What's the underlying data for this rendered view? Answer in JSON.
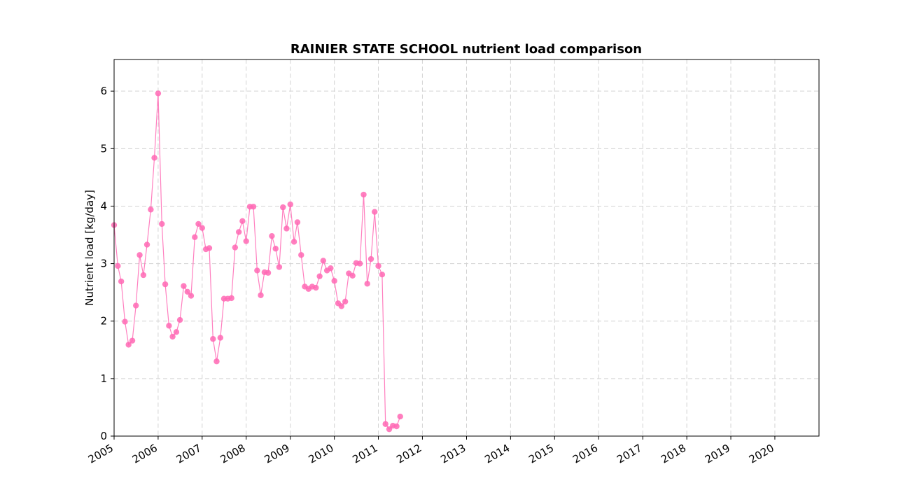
{
  "chart_data": {
    "type": "line",
    "title": "RAINIER STATE SCHOOL nutrient load comparison",
    "xlabel": "",
    "ylabel": "Nutrient load [kg/day]",
    "xlim": [
      "2005-01-01",
      "2021-01-01"
    ],
    "ylim": [
      0,
      6.55
    ],
    "x_ticks": [
      "2005",
      "2006",
      "2007",
      "2008",
      "2009",
      "2010",
      "2011",
      "2012",
      "2013",
      "2014",
      "2015",
      "2016",
      "2017",
      "2018",
      "2019",
      "2020"
    ],
    "y_ticks": [
      "0",
      "1",
      "2",
      "3",
      "4",
      "5",
      "6"
    ],
    "grid": true,
    "marker_color": "#ff69b4",
    "line_color": "#ff69b4",
    "series": [
      {
        "x": [
          "2005-01",
          "2005-02",
          "2005-03",
          "2005-04",
          "2005-05",
          "2005-06",
          "2005-07",
          "2005-08",
          "2005-09",
          "2005-10",
          "2005-11",
          "2005-12",
          "2006-01",
          "2006-02",
          "2006-03",
          "2006-04",
          "2006-05",
          "2006-06",
          "2006-07",
          "2006-08",
          "2006-09",
          "2006-10",
          "2006-11",
          "2006-12",
          "2007-01",
          "2007-02",
          "2007-03",
          "2007-04",
          "2007-05",
          "2007-06",
          "2007-07",
          "2007-08",
          "2007-09",
          "2007-10",
          "2007-11",
          "2007-12",
          "2008-01",
          "2008-02",
          "2008-03",
          "2008-04",
          "2008-05",
          "2008-06",
          "2008-07",
          "2008-08",
          "2008-09",
          "2008-10",
          "2008-11",
          "2008-12",
          "2009-01",
          "2009-02",
          "2009-03",
          "2009-04",
          "2009-05",
          "2009-06",
          "2009-07",
          "2009-08",
          "2009-09",
          "2009-10",
          "2009-11",
          "2009-12",
          "2010-01",
          "2010-02",
          "2010-03",
          "2010-04",
          "2010-05",
          "2010-06",
          "2010-07",
          "2010-08",
          "2010-09",
          "2010-10",
          "2010-11",
          "2010-12",
          "2011-01",
          "2011-02",
          "2011-03",
          "2011-04",
          "2011-05",
          "2011-06",
          "2011-07"
        ],
        "y": [
          3.67,
          2.96,
          2.69,
          1.99,
          1.59,
          1.66,
          2.27,
          3.15,
          2.8,
          3.33,
          3.94,
          4.84,
          5.96,
          3.69,
          2.64,
          1.92,
          1.73,
          1.81,
          2.02,
          2.61,
          2.51,
          2.44,
          3.46,
          3.69,
          3.62,
          3.25,
          3.27,
          1.69,
          1.3,
          1.71,
          2.39,
          2.39,
          2.4,
          3.28,
          3.55,
          3.74,
          3.39,
          3.99,
          3.99,
          2.88,
          2.45,
          2.85,
          2.84,
          3.48,
          3.26,
          2.94,
          3.98,
          3.61,
          4.03,
          3.38,
          3.72,
          3.15,
          2.6,
          2.56,
          2.6,
          2.58,
          2.78,
          3.05,
          2.88,
          2.92,
          2.7,
          2.31,
          2.26,
          2.34,
          2.83,
          2.79,
          3.01,
          3.0,
          4.2,
          2.65,
          3.08,
          3.9,
          2.96,
          2.81,
          0.21,
          0.12,
          0.18,
          0.17,
          0.34
        ]
      }
    ]
  }
}
